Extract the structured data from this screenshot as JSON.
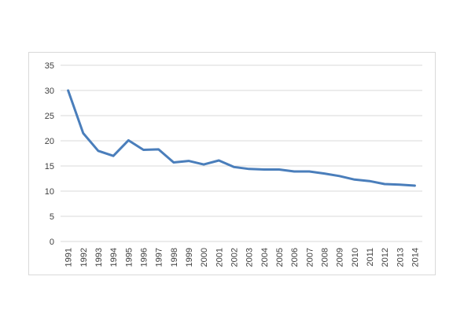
{
  "chart_data": {
    "type": "line",
    "title": "",
    "xlabel": "",
    "ylabel": "",
    "ylim": [
      0,
      35
    ],
    "yticks": [
      "0",
      "5",
      "10",
      "15",
      "20",
      "25",
      "30",
      "35"
    ],
    "grid": "horizontal",
    "legend": "none",
    "categories": [
      "1991",
      "1992",
      "1993",
      "1994",
      "1995",
      "1996",
      "1997",
      "1998",
      "1999",
      "2000",
      "2001",
      "2002",
      "2003",
      "2004",
      "2005",
      "2006",
      "2007",
      "2008",
      "2009",
      "2010",
      "2011",
      "2012",
      "2013",
      "2014"
    ],
    "series": [
      {
        "color": "#4a7ebb",
        "values": [
          30.0,
          21.5,
          18.0,
          17.0,
          20.1,
          18.2,
          18.3,
          15.7,
          16.0,
          15.3,
          16.1,
          14.8,
          14.4,
          14.3,
          14.3,
          13.9,
          13.9,
          13.5,
          13.0,
          12.3,
          12.0,
          11.4,
          11.3,
          11.1
        ]
      }
    ]
  }
}
